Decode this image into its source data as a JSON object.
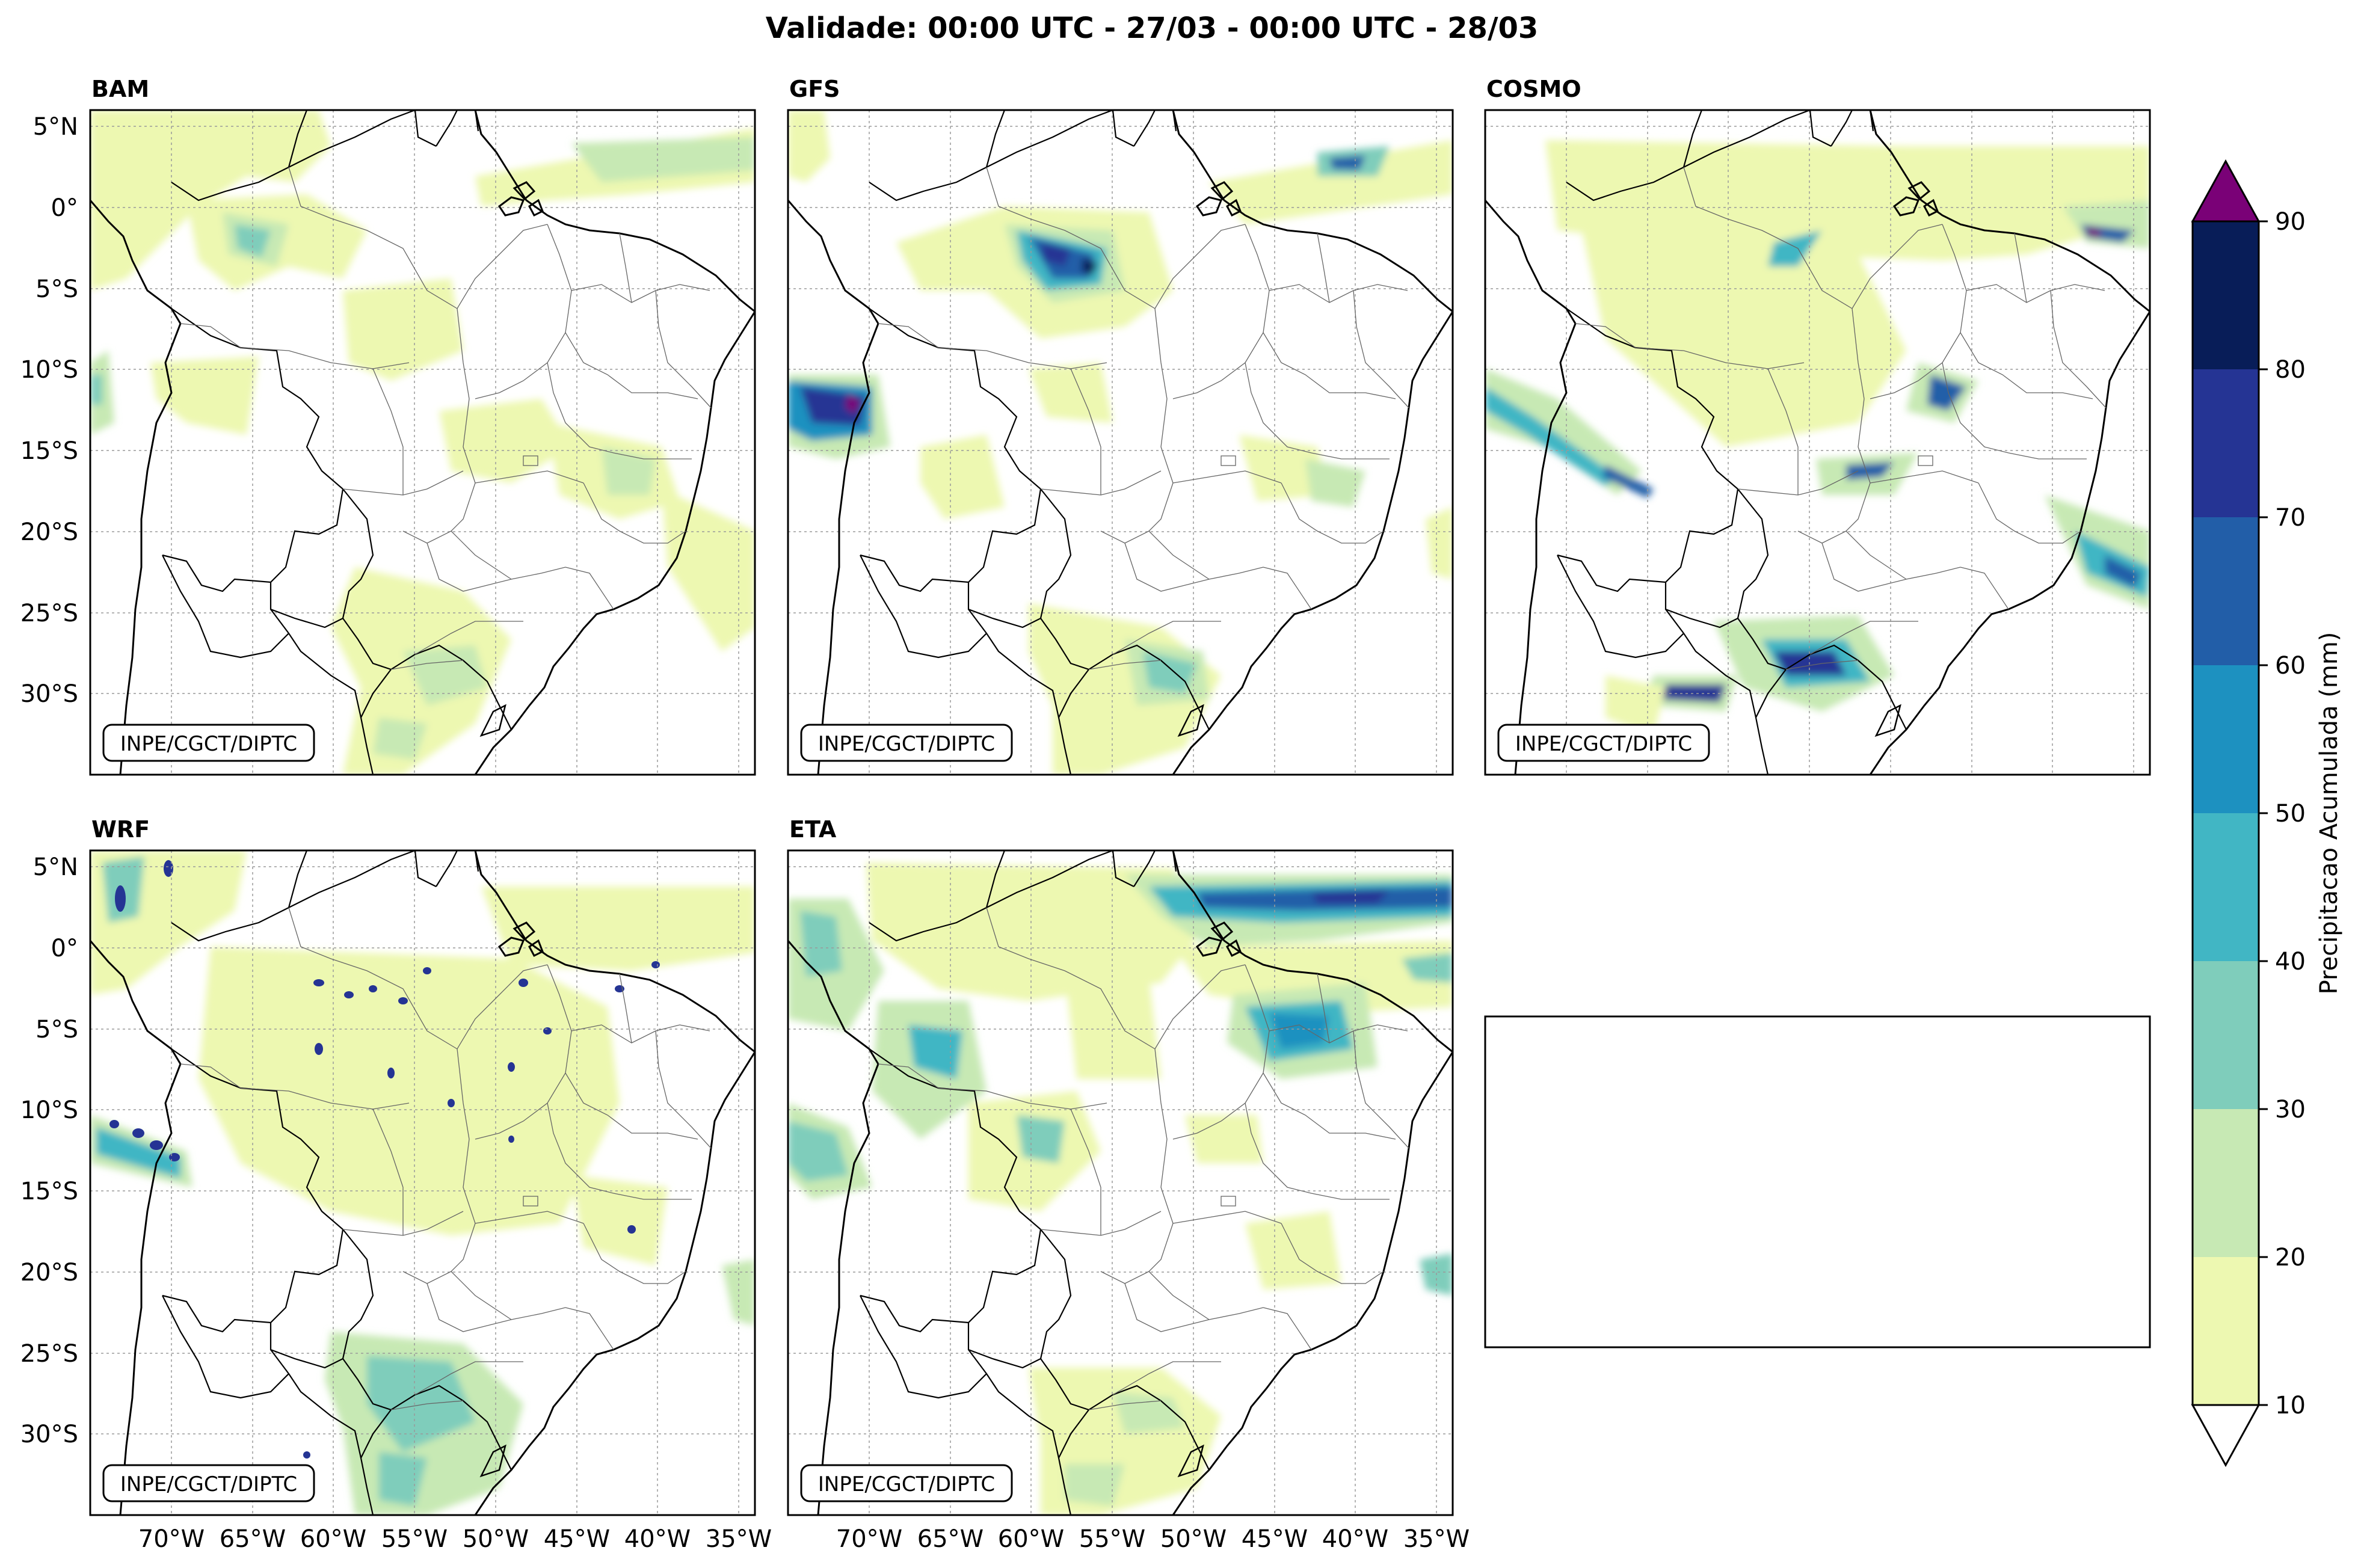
{
  "title": "Validade: 00:00 UTC - 27/03 - 00:00 UTC - 28/03",
  "credit": "INPE/CGCT/DIPTC",
  "panels": [
    {
      "name": "BAM"
    },
    {
      "name": "GFS"
    },
    {
      "name": "COSMO"
    },
    {
      "name": "WRF"
    },
    {
      "name": "ETA"
    }
  ],
  "axes": {
    "lat_labels": [
      "5°N",
      "0°",
      "5°S",
      "10°S",
      "15°S",
      "20°S",
      "25°S",
      "30°S"
    ],
    "lat_values": [
      5,
      0,
      -5,
      -10,
      -15,
      -20,
      -25,
      -30
    ],
    "lon_labels": [
      "70°W",
      "65°W",
      "60°W",
      "55°W",
      "50°W",
      "45°W",
      "40°W",
      "35°W"
    ],
    "lon_values": [
      -70,
      -65,
      -60,
      -55,
      -50,
      -45,
      -40,
      -35
    ],
    "lat_range": [
      -35,
      6
    ],
    "lon_range": [
      -75,
      -34
    ]
  },
  "colorbar": {
    "label": "Precipitacao Acumulada (mm)",
    "tick_labels": [
      "10",
      "20",
      "30",
      "40",
      "50",
      "60",
      "70",
      "80",
      "90"
    ],
    "colors": [
      "#edf8b1",
      "#c7e9b4",
      "#7fcdbb",
      "#41b6c4",
      "#1d91c0",
      "#225ea8",
      "#253494",
      "#081d58"
    ],
    "over_color": "#7a0177",
    "under_color": "#ffffff"
  }
}
